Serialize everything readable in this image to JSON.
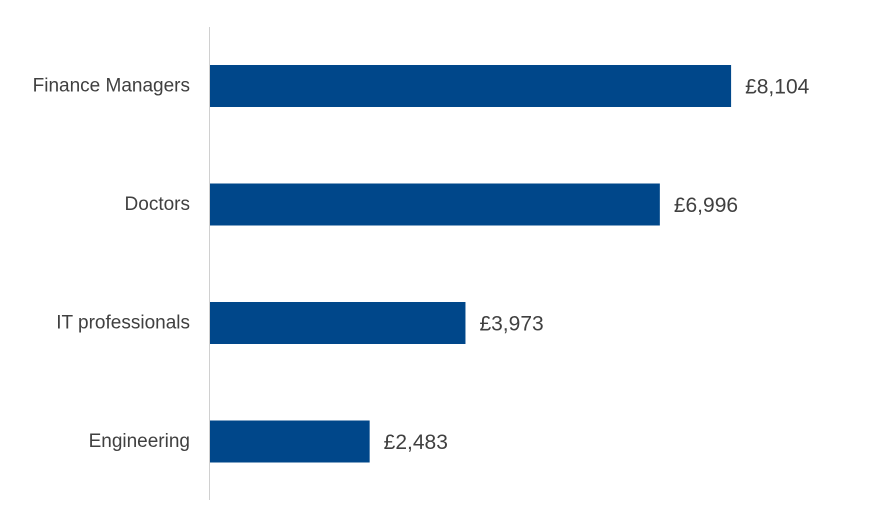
{
  "chart_data": {
    "type": "bar",
    "orientation": "horizontal",
    "categories": [
      "Finance Managers",
      "Doctors",
      "IT professionals",
      "Engineering"
    ],
    "values": [
      8104,
      6996,
      3973,
      2483
    ],
    "value_labels": [
      "£8,104",
      "£6,996",
      "£3,973",
      "£2,483"
    ],
    "title": "",
    "xlabel": "",
    "ylabel": "",
    "xlim": [
      0,
      10000
    ],
    "grid": false,
    "legend": "none",
    "bar_color": "#00478A",
    "axis_color": "#D0D0D0",
    "text_color": "#404040"
  }
}
